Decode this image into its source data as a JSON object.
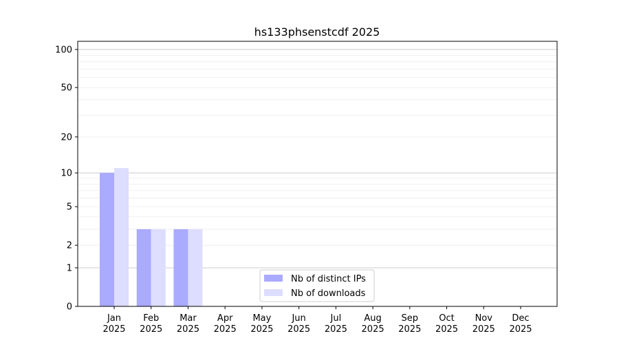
{
  "chart_data": {
    "type": "bar",
    "title": "hs133phsenstcdf 2025",
    "xlabel": "",
    "ylabel": "",
    "yscale": "symlog",
    "ylim": [
      0,
      116
    ],
    "yticks": [
      0,
      1,
      2,
      5,
      10,
      20,
      50,
      100
    ],
    "grid": true,
    "legend_placement": "bottom-center",
    "categories": [
      "Jan\n2025",
      "Feb\n2025",
      "Mar\n2025",
      "Apr\n2025",
      "May\n2025",
      "Jun\n2025",
      "Jul\n2025",
      "Aug\n2025",
      "Sep\n2025",
      "Oct\n2025",
      "Nov\n2025",
      "Dec\n2025"
    ],
    "series": [
      {
        "name": "Nb of distinct IPs",
        "color": "#aaaaff",
        "values": [
          10,
          3,
          3,
          0,
          0,
          0,
          0,
          0,
          0,
          0,
          0,
          0
        ]
      },
      {
        "name": "Nb of downloads",
        "color": "#ddddff",
        "values": [
          11,
          3,
          3,
          0,
          0,
          0,
          0,
          0,
          0,
          0,
          0,
          0
        ]
      }
    ]
  }
}
